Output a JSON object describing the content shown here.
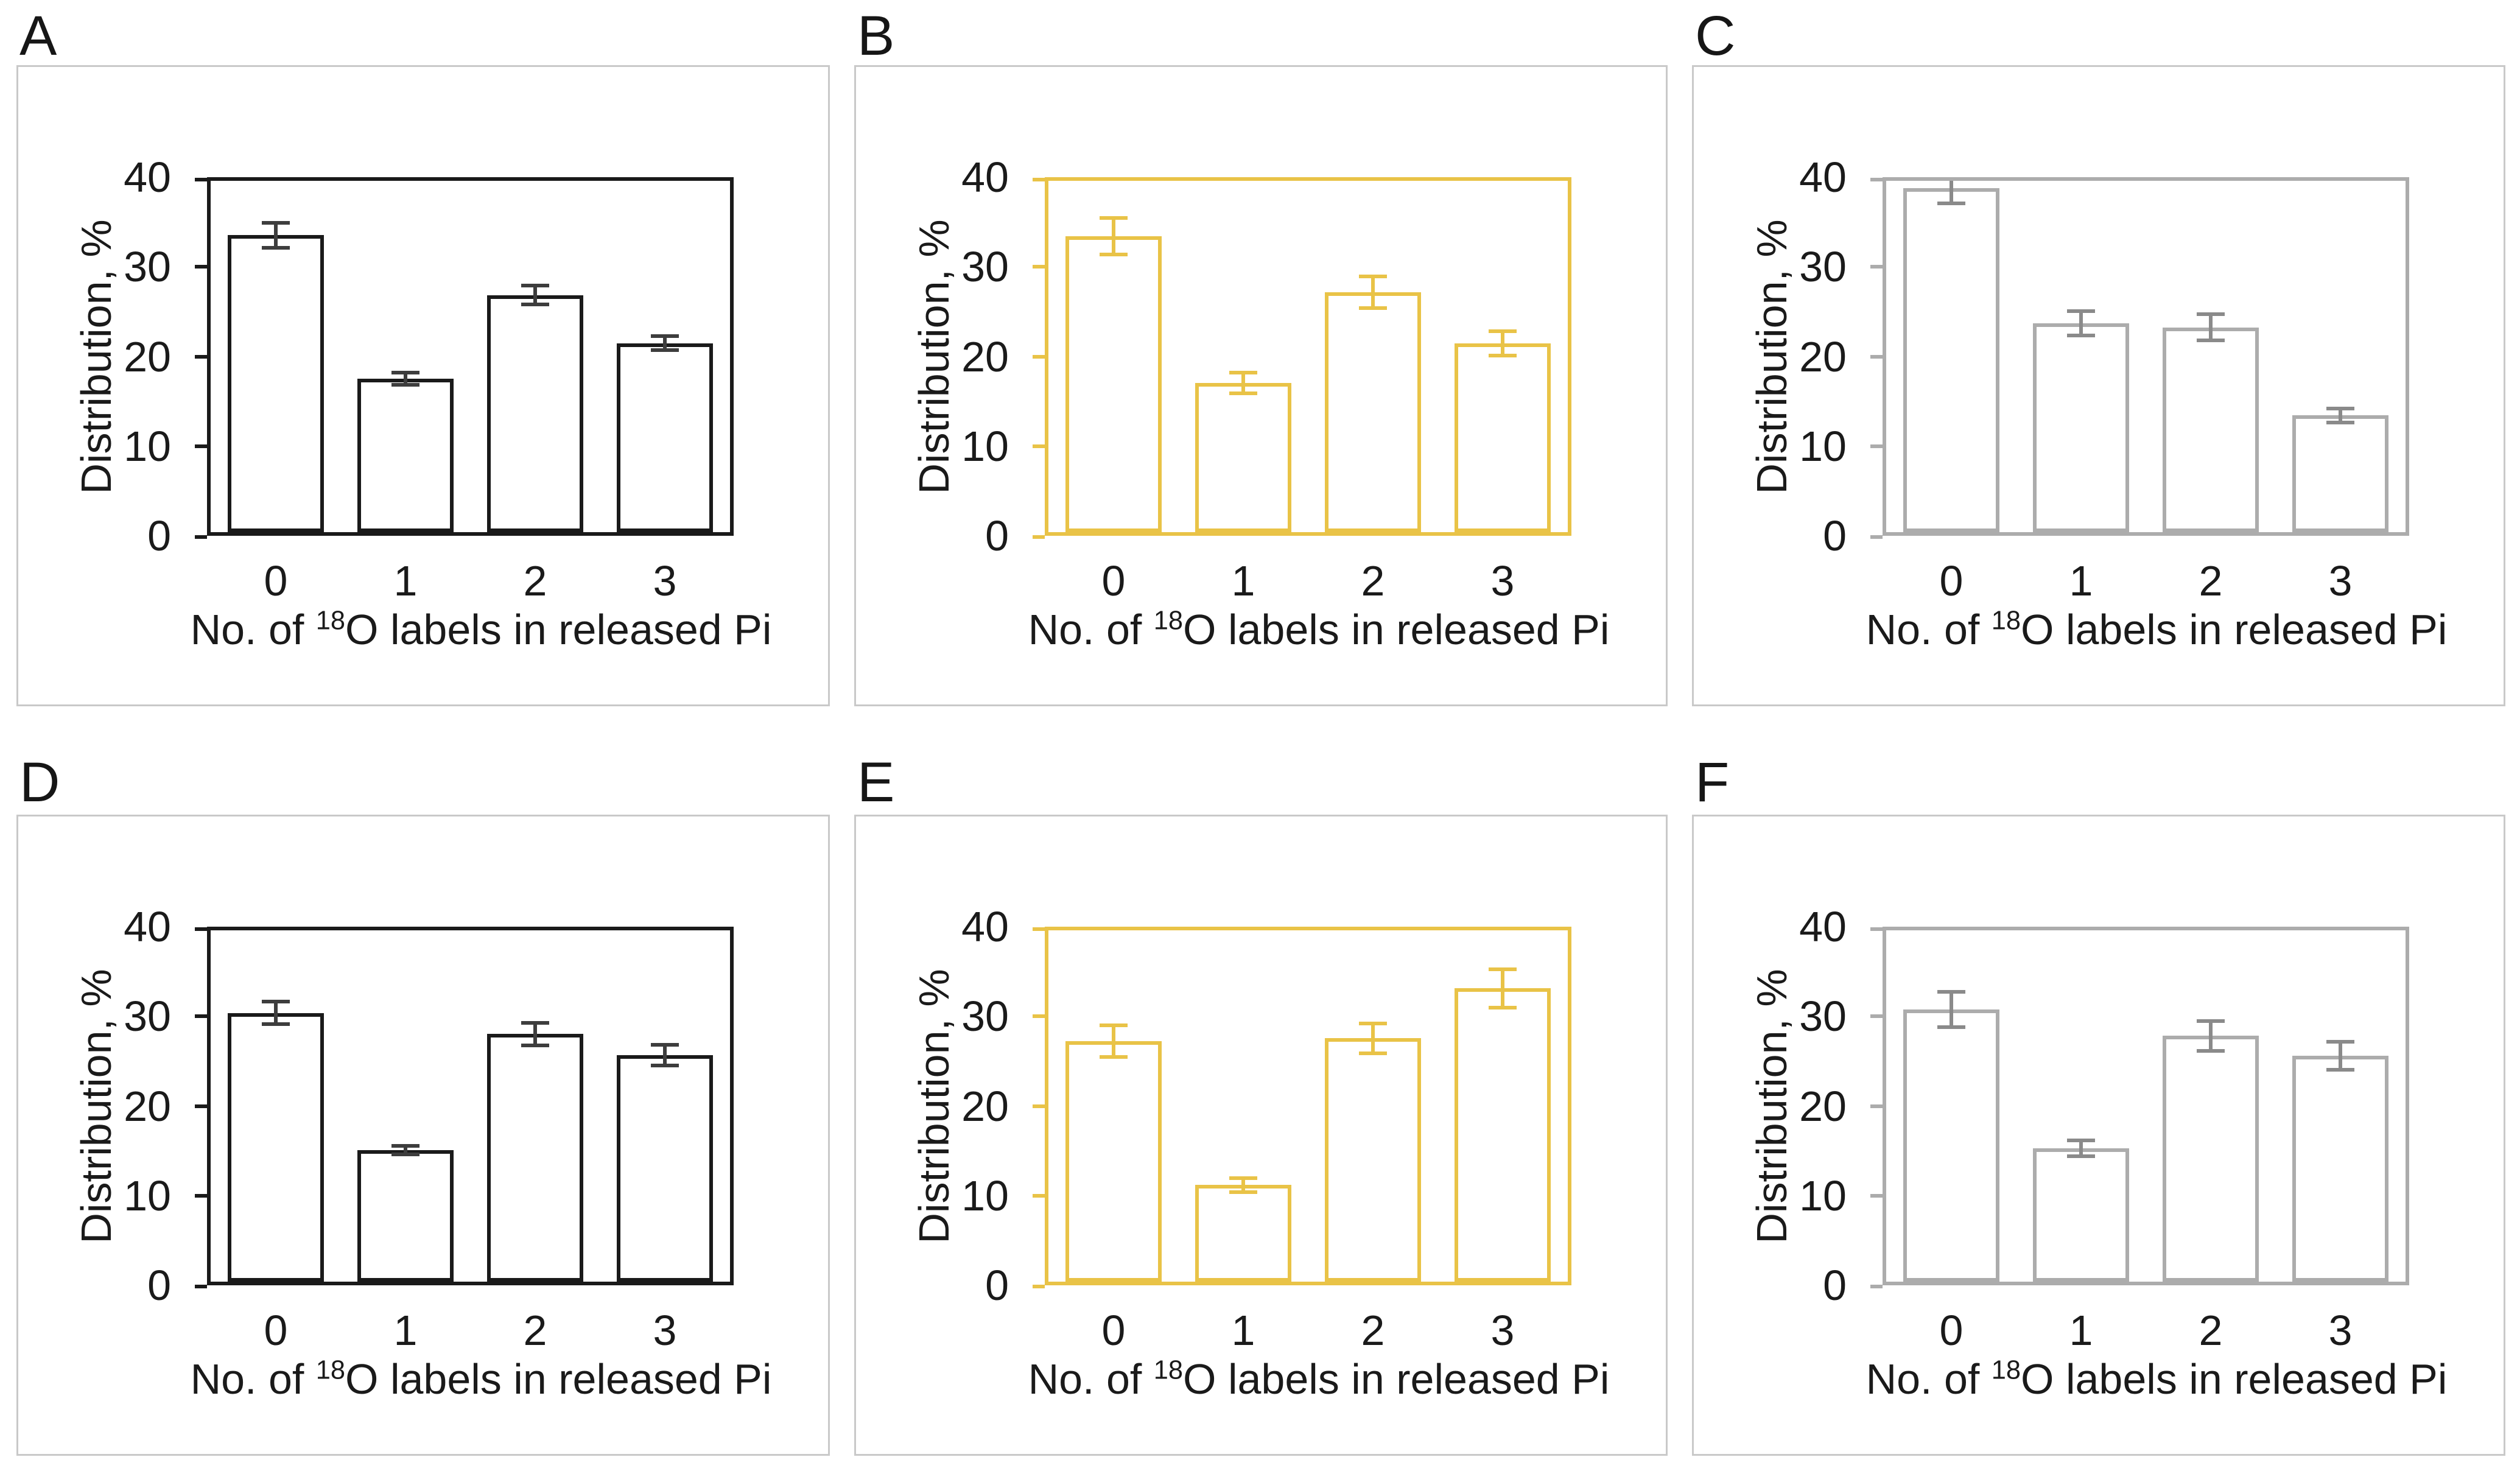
{
  "figure": {
    "panel_letters": [
      "A",
      "B",
      "C",
      "D",
      "E",
      "F"
    ],
    "y_axis_label": "Distribution, %",
    "x_axis_label_parts": {
      "before_sup": "No. of ",
      "sup": "18",
      "after_sup": "O labels in released Pi"
    },
    "x_axis_label_plain": "No. of 18O labels in released Pi",
    "y_ticks": [
      0,
      10,
      20,
      30,
      40
    ],
    "x_categories": [
      "0",
      "1",
      "2",
      "3"
    ],
    "ylim": [
      0,
      40
    ],
    "colors": {
      "black_axis": "#1a1a1a",
      "black_error": "#3d3d3d",
      "yellow_axis": "#e9c347",
      "yellow_error": "#e9c347",
      "gray_axis": "#acacac",
      "gray_error": "#8a8a8a",
      "bar_fill": "#ffffff",
      "panel_border": "#c9c9c9",
      "text": "#1a1a1a"
    }
  },
  "chart_data": [
    {
      "panel": "A",
      "type": "bar",
      "theme": "black",
      "axis_color": "#1a1a1a",
      "bar_edge_color": "#1a1a1a",
      "error_color": "#3d3d3d",
      "bar_fill": "#ffffff",
      "categories": [
        "0",
        "1",
        "2",
        "3"
      ],
      "values": [
        33.8,
        17.5,
        27.0,
        21.5
      ],
      "errors": [
        1.6,
        0.9,
        1.3,
        1.0
      ],
      "title": "",
      "xlabel": "No. of 18O labels in released Pi",
      "ylabel": "Distribution, %",
      "ylim": [
        0,
        40
      ],
      "grid": false
    },
    {
      "panel": "B",
      "type": "bar",
      "theme": "yellow",
      "axis_color": "#e9c347",
      "bar_edge_color": "#e9c347",
      "error_color": "#e9c347",
      "bar_fill": "#ffffff",
      "categories": [
        "0",
        "1",
        "2",
        "3"
      ],
      "values": [
        33.7,
        17.0,
        27.3,
        21.5
      ],
      "errors": [
        2.3,
        1.4,
        2.0,
        1.6
      ],
      "title": "",
      "xlabel": "No. of 18O labels in released Pi",
      "ylabel": "Distribution, %",
      "ylim": [
        0,
        40
      ],
      "grid": false
    },
    {
      "panel": "C",
      "type": "bar",
      "theme": "gray",
      "axis_color": "#acacac",
      "bar_edge_color": "#acacac",
      "error_color": "#8a8a8a",
      "bar_fill": "#ffffff",
      "categories": [
        "0",
        "1",
        "2",
        "3"
      ],
      "values": [
        39.2,
        23.8,
        23.3,
        13.3
      ],
      "errors": [
        2.0,
        1.6,
        1.7,
        1.0
      ],
      "title": "",
      "xlabel": "No. of 18O labels in released Pi",
      "ylabel": "Distribution, %",
      "ylim": [
        0,
        40
      ],
      "grid": false
    },
    {
      "panel": "D",
      "type": "bar",
      "theme": "black",
      "axis_color": "#1a1a1a",
      "bar_edge_color": "#1a1a1a",
      "error_color": "#3d3d3d",
      "bar_fill": "#ffffff",
      "categories": [
        "0",
        "1",
        "2",
        "3"
      ],
      "values": [
        30.6,
        15.0,
        28.2,
        25.8
      ],
      "errors": [
        1.5,
        0.7,
        1.5,
        1.4
      ],
      "title": "",
      "xlabel": "No. of 18O labels in released Pi",
      "ylabel": "Distribution, %",
      "ylim": [
        0,
        40
      ],
      "grid": false
    },
    {
      "panel": "E",
      "type": "bar",
      "theme": "yellow",
      "axis_color": "#e9c347",
      "bar_edge_color": "#e9c347",
      "error_color": "#e9c347",
      "bar_fill": "#ffffff",
      "categories": [
        "0",
        "1",
        "2",
        "3"
      ],
      "values": [
        27.4,
        11.0,
        27.7,
        33.4
      ],
      "errors": [
        2.0,
        1.0,
        1.9,
        2.4
      ],
      "title": "",
      "xlabel": "No. of 18O labels in released Pi",
      "ylabel": "Distribution, %",
      "ylim": [
        0,
        40
      ],
      "grid": false
    },
    {
      "panel": "F",
      "type": "bar",
      "theme": "gray",
      "axis_color": "#acacac",
      "bar_edge_color": "#acacac",
      "error_color": "#8a8a8a",
      "bar_fill": "#ffffff",
      "categories": [
        "0",
        "1",
        "2",
        "3"
      ],
      "values": [
        31.0,
        15.2,
        28.0,
        25.7
      ],
      "errors": [
        2.2,
        1.1,
        1.9,
        1.8
      ],
      "title": "",
      "xlabel": "No. of 18O labels in released Pi",
      "ylabel": "Distribution, %",
      "ylim": [
        0,
        40
      ],
      "grid": false
    }
  ]
}
